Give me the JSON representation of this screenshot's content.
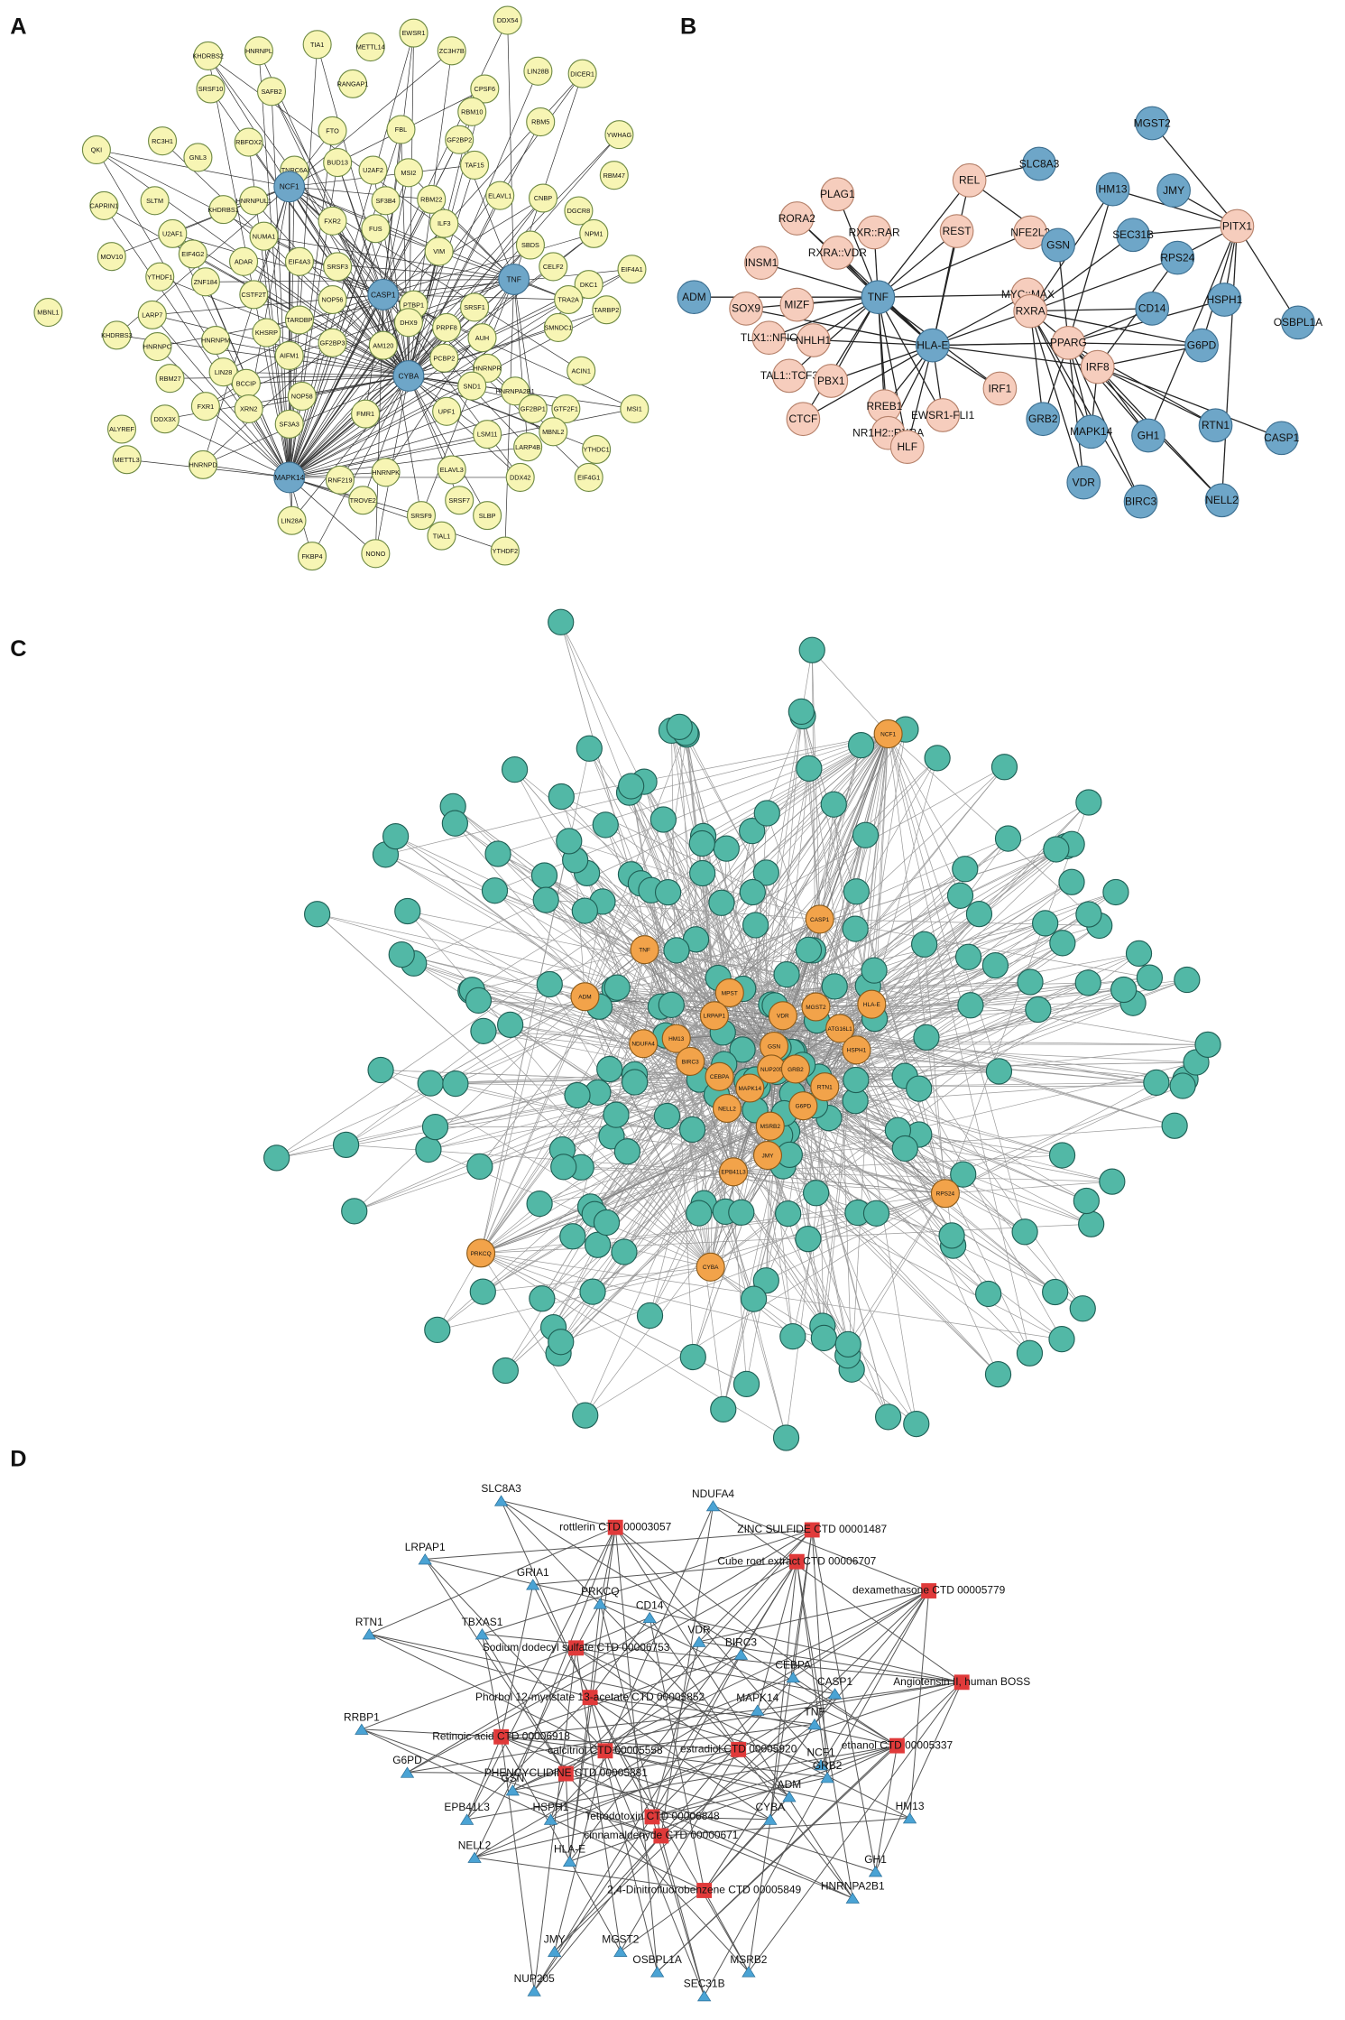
{
  "panels": [
    {
      "label": "A",
      "hubs": [
        "NCF1",
        "CASP1",
        "TNF",
        "CYBA",
        "MAPK14"
      ],
      "nodes": [
        "KHDRBS2",
        "HNRNPL",
        "TIA1",
        "METTL14",
        "EWSR1",
        "ZC3H7B",
        "DDX54",
        "SRSF10",
        "SAFB2",
        "RANGAP1",
        "CPSF6",
        "LIN28B",
        "DICER1",
        "RC3H1",
        "RBFOX2",
        "FTO",
        "FBL",
        "RBM10",
        "GF2BP2",
        "RBM5",
        "QKI",
        "GNL3",
        "TNRC6A",
        "U2AF2",
        "MSI2",
        "TAF15",
        "YWHAG",
        "SLTM",
        "BUD13",
        "SF3B4",
        "RBM22",
        "ELAVL1",
        "CNBP",
        "RBM47",
        "CAPRIN1",
        "KHDRBS1",
        "NUMA1",
        "FXR2",
        "ILF3",
        "DGCR8",
        "U2AF1",
        "HNRNPUL1",
        "FUS",
        "SBDS",
        "NPM1",
        "MOV10",
        "EIF4G2",
        "ADAR",
        "EIF4A3",
        "SRSF3",
        "VIM",
        "CELF2",
        "EIF4A1",
        "YTHDF1",
        "ZNF184",
        "CSTF2T",
        "NOP56",
        "PTBP1",
        "SRSF1",
        "DKC1",
        "TRA2A",
        "SMNDC1",
        "TARBP2",
        "MBNL1",
        "LARP7",
        "KHDRBS3",
        "HNRNPC",
        "HNRNPM",
        "KHSRP",
        "TARDBP",
        "DHX9",
        "PRPF8",
        "AUH",
        "HNRNPR",
        "HNRNPA2B1",
        "ACIN1",
        "LIN28",
        "RBM27",
        "AIFM1",
        "GF2BP3",
        "AM120",
        "PCBP2",
        "SND1",
        "BCCIP",
        "FXR1",
        "XRN2",
        "NOP58",
        "SF3A3",
        "FMR1",
        "UPF1",
        "GF2BP1",
        "GTF2F1",
        "MSI1",
        "ALYREF",
        "DDX3X",
        "MBNL2",
        "LARP4B",
        "YTHDC1",
        "LSM11",
        "METTL3",
        "HNRNPD",
        "ELAVL3",
        "HNRNPK",
        "RNF219",
        "DDX42",
        "EIF4G1",
        "TROVE2",
        "SRSF7",
        "SRSF9",
        "SLBP",
        "LIN28A",
        "TIAL1",
        "NONO",
        "FKBP4",
        "YTHDF2"
      ]
    },
    {
      "label": "B",
      "regulators": [
        "REL",
        "PLAG1",
        "RORA2",
        "RXR::RAR",
        "RXRA::VDR",
        "INSM1",
        "REST",
        "NFE2L2",
        "SOX9",
        "MIZF",
        "MYC::MAX",
        "NHLH1",
        "TLX1::NFIC",
        "TAL1::TCF3",
        "PBX1",
        "CTCF",
        "RREB1",
        "NR1H2::RXRA",
        "HLF",
        "EWSR1-FLI1",
        "IRF1",
        "RXRA",
        "PPARG",
        "IRF8",
        "PITX1"
      ],
      "genes": [
        "TNF",
        "HLA-E",
        "SLC8A3",
        "MGST2",
        "HM13",
        "JMY",
        "GSN",
        "SEC31B",
        "RPS24",
        "ADM",
        "CD14",
        "HSPH1",
        "OSBPL1A",
        "G6PD",
        "GRB2",
        "MAPK14",
        "GH1",
        "RTN1",
        "CASP1",
        "VDR",
        "BIRC3",
        "NELL2"
      ]
    },
    {
      "label": "C",
      "genes": [
        "NCF1",
        "CASP1",
        "TNF",
        "ADM",
        "MPST",
        "VDR",
        "MGST2",
        "HLA-E",
        "LRPAP1",
        "ATG16L1",
        "NDUFA4",
        "HM13",
        "GSN",
        "HSPH1",
        "BIRC3",
        "NUP205",
        "GRB2",
        "CEBPA",
        "MAPK14",
        "RTN1",
        "NELL2",
        "G6PD",
        "MSRB2",
        "JMY",
        "EPB41L3",
        "RPS24",
        "PRKCQ",
        "CYBA"
      ]
    },
    {
      "label": "D",
      "genes": [
        "SLC8A3",
        "LRPAP1",
        "GRIA1",
        "NDUFA4",
        "CD14",
        "PRKCQ",
        "VDR",
        "BIRC3",
        "CEBPA",
        "CASP1",
        "RTN1",
        "TBXAS1",
        "MAPK14",
        "TNF",
        "RRBP1",
        "NCF1",
        "G6PD",
        "GRB2",
        "GSN",
        "ADM",
        "EPB41L3",
        "HSPH1",
        "CYBA",
        "HM13",
        "NELL2",
        "HLA-E",
        "GH1",
        "HNRNPA2B1",
        "JMY",
        "MGST2",
        "OSBPL1A",
        "MSRB2",
        "NUP205",
        "SEC31B"
      ],
      "chemicals": [
        "rottlerin CTD 00003057",
        "ZINC SULFIDE CTD 00001487",
        "Cube root extract CTD 00006707",
        "dexamethasone CTD 00005779",
        "Sodium dodecyl sulfate CTD 00006753",
        "Phorbol 12-myristate 13-acetate CTD 00005852",
        "Angiotensin II, human BOSS",
        "Retinoic acid CTD 00006918",
        "calcitriol CTD 00005558",
        "estradiol CTD 00005920",
        "ethanol CTD 00005337",
        "PHENCYCLIDINE CTD 00005881",
        "Tetrodotoxin CTD 00006848",
        "cinnamaldehyde CTD 00000671",
        "2,4-Dinitrofluorobenzene CTD 00005849"
      ]
    }
  ]
}
